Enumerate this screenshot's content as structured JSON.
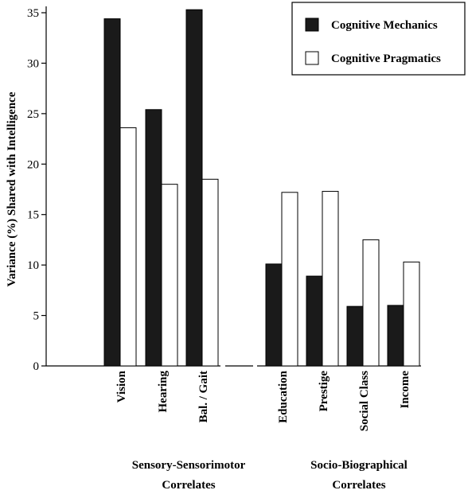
{
  "chart_data": {
    "type": "bar",
    "ylabel": "Variance (%) Shared with Intelligence",
    "ylim": [
      0,
      35
    ],
    "yticks": [
      "0",
      "5",
      "10",
      "15",
      "20",
      "25",
      "30",
      "35"
    ],
    "grid": false,
    "legend_position": "top-right",
    "categories": [
      "Vision",
      "Hearing",
      "Bal. / Gait",
      "Education",
      "Prestige",
      "Social Class",
      "Income"
    ],
    "groups": [
      {
        "line1": "Sensory-Sensorimotor",
        "line2": "Correlates",
        "categories": [
          "Vision",
          "Hearing",
          "Bal. / Gait"
        ]
      },
      {
        "line1": "Socio-Biographical",
        "line2": "Correlates",
        "categories": [
          "Education",
          "Prestige",
          "Social Class",
          "Income"
        ]
      }
    ],
    "series": [
      {
        "name": "Cognitive Mechanics",
        "color": "#1a1a1a",
        "values": [
          34.4,
          25.4,
          35.3,
          10.1,
          8.9,
          5.9,
          6.0
        ]
      },
      {
        "name": "Cognitive Pragmatics",
        "color": "#ffffff",
        "values": [
          23.6,
          18.0,
          18.5,
          17.2,
          17.3,
          12.5,
          10.3
        ]
      }
    ]
  }
}
